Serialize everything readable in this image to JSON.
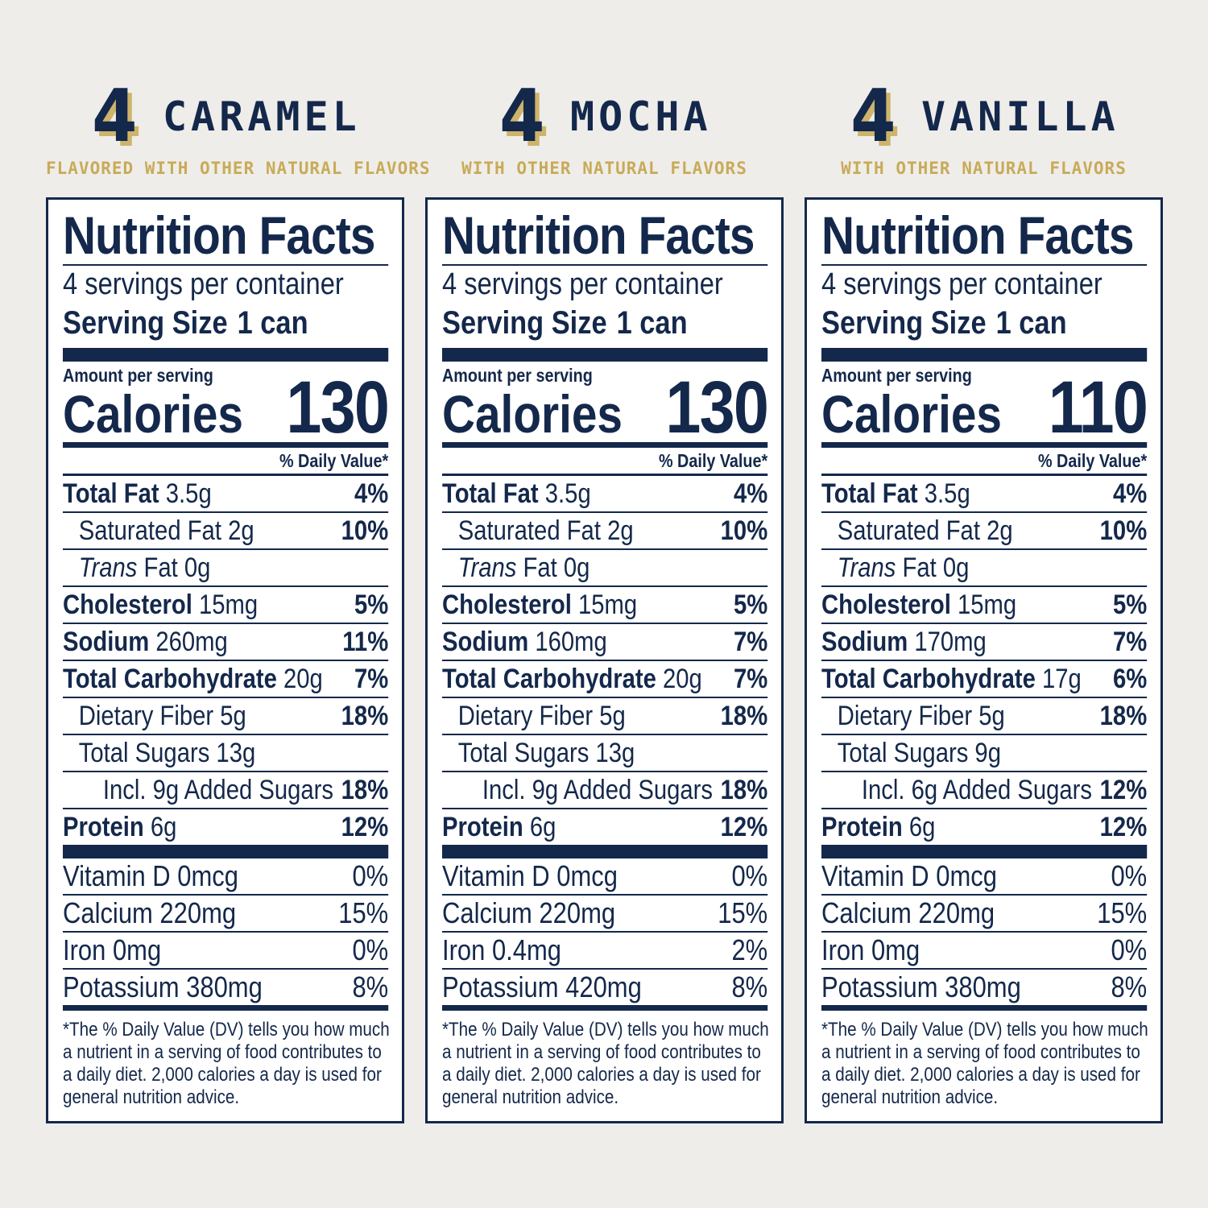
{
  "labels": {
    "title": "Nutrition Facts",
    "servings": "4 servings per container",
    "serving_size_label": "Serving Size",
    "serving_size_value": "1 can",
    "amount_per_serving": "Amount per serving",
    "calories_label": "Calories",
    "dv_header": "% Daily Value*",
    "trans": "Trans",
    "fat_0g": "Fat 0g",
    "footnote_lines": [
      "*The % Daily Value (DV) tells you how much",
      "a nutrient in a serving of food contributes to",
      "a daily diet. 2,000 calories a day is used for",
      "general nutrition advice."
    ]
  },
  "flavors": [
    {
      "number": "4",
      "name": "CARAMEL",
      "subtitle": "FLAVORED WITH OTHER NATURAL FLAVORS",
      "calories": "130",
      "total_fat": {
        "name": "Total Fat",
        "amount": "3.5g",
        "dv": "4%"
      },
      "sat_fat": {
        "name": "Saturated Fat 2g",
        "dv": "10%"
      },
      "cholesterol": {
        "name": "Cholesterol",
        "amount": "15mg",
        "dv": "5%"
      },
      "sodium": {
        "name": "Sodium",
        "amount": "260mg",
        "dv": "11%"
      },
      "carb": {
        "name": "Total Carbohydrate",
        "amount": "20g",
        "dv": "7%"
      },
      "fiber": {
        "name": "Dietary Fiber 5g",
        "dv": "18%"
      },
      "sugars": {
        "name": "Total Sugars 13g"
      },
      "added": {
        "name": "Incl. 9g Added Sugars",
        "dv": "18%"
      },
      "protein": {
        "name": "Protein",
        "amount": "6g",
        "dv": "12%"
      },
      "vitamins": [
        {
          "name": "Vitamin D 0mcg",
          "dv": "0%"
        },
        {
          "name": "Calcium 220mg",
          "dv": "15%"
        },
        {
          "name": "Iron 0mg",
          "dv": "0%"
        },
        {
          "name": "Potassium 380mg",
          "dv": "8%"
        }
      ]
    },
    {
      "number": "4",
      "name": "MOCHA",
      "subtitle": "WITH OTHER NATURAL FLAVORS",
      "calories": "130",
      "total_fat": {
        "name": "Total Fat",
        "amount": "3.5g",
        "dv": "4%"
      },
      "sat_fat": {
        "name": "Saturated Fat 2g",
        "dv": "10%"
      },
      "cholesterol": {
        "name": "Cholesterol",
        "amount": "15mg",
        "dv": "5%"
      },
      "sodium": {
        "name": "Sodium",
        "amount": "160mg",
        "dv": "7%"
      },
      "carb": {
        "name": "Total Carbohydrate",
        "amount": "20g",
        "dv": "7%"
      },
      "fiber": {
        "name": "Dietary Fiber 5g",
        "dv": "18%"
      },
      "sugars": {
        "name": "Total Sugars 13g"
      },
      "added": {
        "name": "Incl. 9g Added Sugars",
        "dv": "18%"
      },
      "protein": {
        "name": "Protein",
        "amount": "6g",
        "dv": "12%"
      },
      "vitamins": [
        {
          "name": "Vitamin D 0mcg",
          "dv": "0%"
        },
        {
          "name": "Calcium 220mg",
          "dv": "15%"
        },
        {
          "name": "Iron 0.4mg",
          "dv": "2%"
        },
        {
          "name": "Potassium 420mg",
          "dv": "8%"
        }
      ]
    },
    {
      "number": "4",
      "name": "VANILLA",
      "subtitle": "WITH OTHER NATURAL FLAVORS",
      "calories": "110",
      "total_fat": {
        "name": "Total Fat",
        "amount": "3.5g",
        "dv": "4%"
      },
      "sat_fat": {
        "name": "Saturated Fat 2g",
        "dv": "10%"
      },
      "cholesterol": {
        "name": "Cholesterol",
        "amount": "15mg",
        "dv": "5%"
      },
      "sodium": {
        "name": "Sodium",
        "amount": "170mg",
        "dv": "7%"
      },
      "carb": {
        "name": "Total Carbohydrate",
        "amount": "17g",
        "dv": "6%"
      },
      "fiber": {
        "name": "Dietary Fiber 5g",
        "dv": "18%"
      },
      "sugars": {
        "name": "Total Sugars 9g"
      },
      "added": {
        "name": "Incl. 6g Added Sugars",
        "dv": "12%"
      },
      "protein": {
        "name": "Protein",
        "amount": "6g",
        "dv": "12%"
      },
      "vitamins": [
        {
          "name": "Vitamin D 0mcg",
          "dv": "0%"
        },
        {
          "name": "Calcium 220mg",
          "dv": "15%"
        },
        {
          "name": "Iron 0mg",
          "dv": "0%"
        },
        {
          "name": "Potassium 380mg",
          "dv": "8%"
        }
      ]
    }
  ]
}
